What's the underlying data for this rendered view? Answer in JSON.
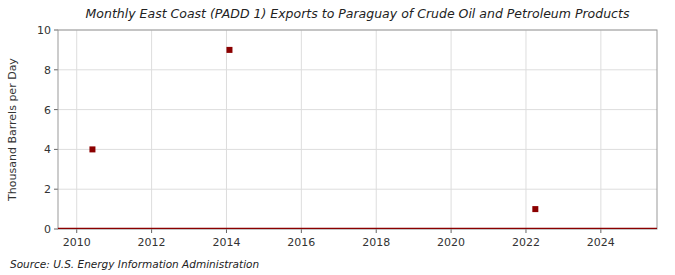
{
  "chart_data": {
    "type": "scatter",
    "title": "Monthly East Coast (PADD 1) Exports to Paraguay of Crude Oil and Petroleum Products",
    "y_label": "Thousand Barrels per Day",
    "source": "Source: U.S. Energy Information Administration",
    "x": [
      2010.42,
      2014.08,
      2022.25
    ],
    "values": [
      4.0,
      9.0,
      1.0
    ],
    "baseline": 0,
    "color": "#8b0000",
    "marker": "square",
    "xlim": [
      2009.5,
      2025.5
    ],
    "xticks": [
      2010,
      2012,
      2014,
      2016,
      2018,
      2020,
      2022,
      2024
    ],
    "ylim": [
      0,
      10
    ],
    "yticks": [
      0,
      2,
      4,
      6,
      8,
      10
    ],
    "grid": true
  }
}
